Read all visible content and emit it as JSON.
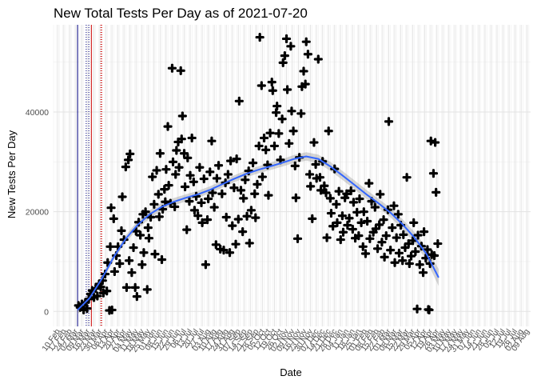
{
  "chart_data": {
    "type": "scatter",
    "title": "New Total Tests Per Day as of 2021-07-20",
    "xlabel": "Date",
    "ylabel": "New Tests Per Day",
    "ylim": [
      -3000,
      57500
    ],
    "xlim": [
      "2020-02-05",
      "2021-08-13"
    ],
    "grid": true,
    "background": "#ffffff",
    "gridline_color": "#ebebeb",
    "point_color": "#000000",
    "smooth_color": "#3366ff",
    "ribbon_color": "#999999",
    "y_ticks": [
      0,
      20000,
      40000
    ],
    "x_tick_dates": [
      "2020-02-10",
      "2020-02-17",
      "2020-02-24",
      "2020-03-02",
      "2020-03-09",
      "2020-03-16",
      "2020-03-23",
      "2020-03-30",
      "2020-04-06",
      "2020-04-13",
      "2020-04-20",
      "2020-04-27",
      "2020-05-04",
      "2020-05-11",
      "2020-05-18",
      "2020-05-25",
      "2020-06-01",
      "2020-06-08",
      "2020-06-15",
      "2020-06-22",
      "2020-06-29",
      "2020-07-06",
      "2020-07-13",
      "2020-07-20",
      "2020-07-27",
      "2020-08-03",
      "2020-08-10",
      "2020-08-17",
      "2020-08-24",
      "2020-08-31",
      "2020-09-07",
      "2020-09-14",
      "2020-09-21",
      "2020-09-28",
      "2020-10-05",
      "2020-10-12",
      "2020-10-19",
      "2020-10-26",
      "2020-11-02",
      "2020-11-09",
      "2020-11-16",
      "2020-11-23",
      "2020-11-30",
      "2020-12-07",
      "2020-12-14",
      "2020-12-21",
      "2020-12-28",
      "2021-01-04",
      "2021-01-11",
      "2021-01-18",
      "2021-01-25",
      "2021-02-01",
      "2021-02-08",
      "2021-02-15",
      "2021-02-22",
      "2021-03-01",
      "2021-03-08",
      "2021-03-15",
      "2021-03-22",
      "2021-03-29",
      "2021-04-05",
      "2021-04-12",
      "2021-04-19",
      "2021-04-26",
      "2021-05-03",
      "2021-05-10",
      "2021-05-17",
      "2021-05-24",
      "2021-05-31",
      "2021-06-07",
      "2021-06-14",
      "2021-06-21",
      "2021-06-28",
      "2021-07-05",
      "2021-07-12",
      "2021-07-19",
      "2021-07-26",
      "2021-08-02",
      "2021-08-09"
    ],
    "x_tick_labels": [
      "10 Feb",
      "17 Feb",
      "24 Feb",
      "02 Mar",
      "09 Mar",
      "16 Mar",
      "23 Mar",
      "30 Mar",
      "06 Apr",
      "13 Apr",
      "20 Apr",
      "27 Apr",
      "04 May",
      "11 May",
      "18 May",
      "25 May",
      "01 Jun",
      "08 Jun",
      "15 Jun",
      "22 Jun",
      "29 Jun",
      "06 Jul",
      "13 Jul",
      "20 Jul",
      "27 Jul",
      "03 Aug",
      "10 Aug",
      "17 Aug",
      "24 Aug",
      "31 Aug",
      "07 Sep",
      "14 Sep",
      "21 Sep",
      "28 Sep",
      "05 Oct",
      "12 Oct",
      "19 Oct",
      "26 Oct",
      "02 Nov",
      "09 Nov",
      "16 Nov",
      "23 Nov",
      "30 Nov",
      "07 Dec",
      "14 Dec",
      "21 Dec",
      "28 Dec",
      "04 Jan",
      "11 Jan",
      "18 Jan",
      "25 Jan",
      "01 Feb",
      "08 Feb",
      "15 Feb",
      "22 Feb",
      "01 Mar",
      "08 Mar",
      "15 Mar",
      "22 Mar",
      "29 Mar",
      "05 Apr",
      "12 Apr",
      "19 Apr",
      "26 Apr",
      "03 May",
      "10 May",
      "17 May",
      "24 May",
      "31 May",
      "07 Jun",
      "14 Jun",
      "21 Jun",
      "28 Jun",
      "05 Jul",
      "12 Jul",
      "19 Jul",
      "26 Jul",
      "02 Aug",
      "09 Aug"
    ],
    "vlines": [
      {
        "date": "2020-03-04",
        "color": "#000080",
        "style": "solid"
      },
      {
        "date": "2020-03-14",
        "color": "#000080",
        "style": "dotted"
      },
      {
        "date": "2020-03-17",
        "color": "#000080",
        "style": "dotted"
      },
      {
        "date": "2020-03-20",
        "color": "#cc0000",
        "style": "solid"
      },
      {
        "date": "2020-03-31",
        "color": "#cc0000",
        "style": "dotted"
      },
      {
        "date": "2020-04-01",
        "color": "#cc0000",
        "style": "dotted"
      }
    ],
    "points": [
      [
        "2020-03-05",
        1200
      ],
      [
        "2020-03-07",
        800
      ],
      [
        "2020-03-09",
        1500
      ],
      [
        "2020-03-11",
        300
      ],
      [
        "2020-03-13",
        1800
      ],
      [
        "2020-03-15",
        600
      ],
      [
        "2020-03-17",
        2500
      ],
      [
        "2020-03-19",
        3500
      ],
      [
        "2020-03-21",
        4200
      ],
      [
        "2020-03-23",
        2800
      ],
      [
        "2020-03-25",
        4600
      ],
      [
        "2020-03-27",
        3100
      ],
      [
        "2020-03-29",
        5500
      ],
      [
        "2020-03-31",
        4900
      ],
      [
        "2020-04-02",
        6200
      ],
      [
        "2020-04-03",
        3700
      ],
      [
        "2020-04-05",
        7500
      ],
      [
        "2020-04-07",
        4100
      ],
      [
        "2020-04-08",
        9800
      ],
      [
        "2020-04-10",
        200
      ],
      [
        "2020-04-11",
        13000
      ],
      [
        "2020-04-12",
        20800
      ],
      [
        "2020-04-13",
        300
      ],
      [
        "2020-04-15",
        18600
      ],
      [
        "2020-04-16",
        8000
      ],
      [
        "2020-04-18",
        11200
      ],
      [
        "2020-04-20",
        13000
      ],
      [
        "2020-04-22",
        9600
      ],
      [
        "2020-04-24",
        16200
      ],
      [
        "2020-04-25",
        23000
      ],
      [
        "2020-04-27",
        14400
      ],
      [
        "2020-04-29",
        29000
      ],
      [
        "2020-04-30",
        4800
      ],
      [
        "2020-05-02",
        30400
      ],
      [
        "2020-05-03",
        10200
      ],
      [
        "2020-05-04",
        31600
      ],
      [
        "2020-05-06",
        7800
      ],
      [
        "2020-05-08",
        12800
      ],
      [
        "2020-05-10",
        4800
      ],
      [
        "2020-05-11",
        16100
      ],
      [
        "2020-05-12",
        3000
      ],
      [
        "2020-05-14",
        17900
      ],
      [
        "2020-05-16",
        15300
      ],
      [
        "2020-05-18",
        9400
      ],
      [
        "2020-05-19",
        19500
      ],
      [
        "2020-05-20",
        11800
      ],
      [
        "2020-05-22",
        20000
      ],
      [
        "2020-05-24",
        4400
      ],
      [
        "2020-05-25",
        16800
      ],
      [
        "2020-05-26",
        14700
      ],
      [
        "2020-05-28",
        18900
      ],
      [
        "2020-05-30",
        27000
      ],
      [
        "2020-06-01",
        21500
      ],
      [
        "2020-06-02",
        11500
      ],
      [
        "2020-06-04",
        28300
      ],
      [
        "2020-06-06",
        23500
      ],
      [
        "2020-06-07",
        19000
      ],
      [
        "2020-06-08",
        31700
      ],
      [
        "2020-06-10",
        10400
      ],
      [
        "2020-06-11",
        20500
      ],
      [
        "2020-06-13",
        24500
      ],
      [
        "2020-06-14",
        22000
      ],
      [
        "2020-06-15",
        28500
      ],
      [
        "2020-06-17",
        37100
      ],
      [
        "2020-06-18",
        25300
      ],
      [
        "2020-06-20",
        21700
      ],
      [
        "2020-06-22",
        48800
      ],
      [
        "2020-06-23",
        30000
      ],
      [
        "2020-06-25",
        21000
      ],
      [
        "2020-06-26",
        27500
      ],
      [
        "2020-06-27",
        32300
      ],
      [
        "2020-06-29",
        34000
      ],
      [
        "2020-06-30",
        28900
      ],
      [
        "2020-07-02",
        48300
      ],
      [
        "2020-07-03",
        34600
      ],
      [
        "2020-07-04",
        39200
      ],
      [
        "2020-07-06",
        31700
      ],
      [
        "2020-07-07",
        25000
      ],
      [
        "2020-07-09",
        16400
      ],
      [
        "2020-07-10",
        30800
      ],
      [
        "2020-07-12",
        22100
      ],
      [
        "2020-07-13",
        27300
      ],
      [
        "2020-07-15",
        34800
      ],
      [
        "2020-07-17",
        26000
      ],
      [
        "2020-07-18",
        20300
      ],
      [
        "2020-07-20",
        23100
      ],
      [
        "2020-07-22",
        19200
      ],
      [
        "2020-07-24",
        28900
      ],
      [
        "2020-07-26",
        21800
      ],
      [
        "2020-07-27",
        17800
      ],
      [
        "2020-07-29",
        26600
      ],
      [
        "2020-07-31",
        9400
      ],
      [
        "2020-08-02",
        18400
      ],
      [
        "2020-08-03",
        22600
      ],
      [
        "2020-08-05",
        28000
      ],
      [
        "2020-08-07",
        34200
      ],
      [
        "2020-08-08",
        23800
      ],
      [
        "2020-08-10",
        20900
      ],
      [
        "2020-08-12",
        13400
      ],
      [
        "2020-08-13",
        26700
      ],
      [
        "2020-08-15",
        29300
      ],
      [
        "2020-08-17",
        12500
      ],
      [
        "2020-08-19",
        23600
      ],
      [
        "2020-08-21",
        12300
      ],
      [
        "2020-08-23",
        25800
      ],
      [
        "2020-08-24",
        18900
      ],
      [
        "2020-08-26",
        27500
      ],
      [
        "2020-08-28",
        11800
      ],
      [
        "2020-08-29",
        30200
      ],
      [
        "2020-08-31",
        17200
      ],
      [
        "2020-09-02",
        24800
      ],
      [
        "2020-09-04",
        13500
      ],
      [
        "2020-09-05",
        30600
      ],
      [
        "2020-09-07",
        18500
      ],
      [
        "2020-09-08",
        42200
      ],
      [
        "2020-09-10",
        24300
      ],
      [
        "2020-09-12",
        16000
      ],
      [
        "2020-09-13",
        22700
      ],
      [
        "2020-09-15",
        26400
      ],
      [
        "2020-09-17",
        19100
      ],
      [
        "2020-09-19",
        28200
      ],
      [
        "2020-09-20",
        13700
      ],
      [
        "2020-09-22",
        20300
      ],
      [
        "2020-09-24",
        29800
      ],
      [
        "2020-09-26",
        23600
      ],
      [
        "2020-09-27",
        18800
      ],
      [
        "2020-09-29",
        25500
      ],
      [
        "2020-10-01",
        33200
      ],
      [
        "2020-10-02",
        55000
      ],
      [
        "2020-10-04",
        45300
      ],
      [
        "2020-10-05",
        27000
      ],
      [
        "2020-10-07",
        34800
      ],
      [
        "2020-10-09",
        32400
      ],
      [
        "2020-10-11",
        29400
      ],
      [
        "2020-10-12",
        23300
      ],
      [
        "2020-10-14",
        35800
      ],
      [
        "2020-10-16",
        46000
      ],
      [
        "2020-10-17",
        44300
      ],
      [
        "2020-10-19",
        33200
      ],
      [
        "2020-10-21",
        39900
      ],
      [
        "2020-10-22",
        41200
      ],
      [
        "2020-10-24",
        35700
      ],
      [
        "2020-10-26",
        30400
      ],
      [
        "2020-10-28",
        38600
      ],
      [
        "2020-10-29",
        49900
      ],
      [
        "2020-10-31",
        51300
      ],
      [
        "2020-11-02",
        54700
      ],
      [
        "2020-11-03",
        44500
      ],
      [
        "2020-11-05",
        33700
      ],
      [
        "2020-11-07",
        53200
      ],
      [
        "2020-11-08",
        40200
      ],
      [
        "2020-11-10",
        36200
      ],
      [
        "2020-11-12",
        29200
      ],
      [
        "2020-11-13",
        22800
      ],
      [
        "2020-11-15",
        14600
      ],
      [
        "2020-11-17",
        30900
      ],
      [
        "2020-11-19",
        39700
      ],
      [
        "2020-11-20",
        45100
      ],
      [
        "2020-11-22",
        48200
      ],
      [
        "2020-11-24",
        45600
      ],
      [
        "2020-11-25",
        54100
      ],
      [
        "2020-11-27",
        51600
      ],
      [
        "2020-11-29",
        27500
      ],
      [
        "2020-11-30",
        25100
      ],
      [
        "2020-12-02",
        18600
      ],
      [
        "2020-12-04",
        33900
      ],
      [
        "2020-12-06",
        29500
      ],
      [
        "2020-12-07",
        26700
      ],
      [
        "2020-12-09",
        50600
      ],
      [
        "2020-12-11",
        26900
      ],
      [
        "2020-12-12",
        24300
      ],
      [
        "2020-12-14",
        30100
      ],
      [
        "2020-12-16",
        25200
      ],
      [
        "2020-12-18",
        23800
      ],
      [
        "2020-12-19",
        14800
      ],
      [
        "2020-12-21",
        36200
      ],
      [
        "2020-12-23",
        22700
      ],
      [
        "2020-12-24",
        19700
      ],
      [
        "2020-12-26",
        17100
      ],
      [
        "2020-12-28",
        28600
      ],
      [
        "2020-12-30",
        21500
      ],
      [
        "2020-12-31",
        17800
      ],
      [
        "2021-01-02",
        24100
      ],
      [
        "2021-01-04",
        14400
      ],
      [
        "2021-01-06",
        19200
      ],
      [
        "2021-01-07",
        15900
      ],
      [
        "2021-01-09",
        22800
      ],
      [
        "2021-01-11",
        23600
      ],
      [
        "2021-01-12",
        17300
      ],
      [
        "2021-01-14",
        18700
      ],
      [
        "2021-01-16",
        24200
      ],
      [
        "2021-01-18",
        16500
      ],
      [
        "2021-01-19",
        21900
      ],
      [
        "2021-01-21",
        14700
      ],
      [
        "2021-01-23",
        19900
      ],
      [
        "2021-01-25",
        15200
      ],
      [
        "2021-01-26",
        22600
      ],
      [
        "2021-01-28",
        17800
      ],
      [
        "2021-01-30",
        13000
      ],
      [
        "2021-01-31",
        20000
      ],
      [
        "2021-02-02",
        11600
      ],
      [
        "2021-02-04",
        18100
      ],
      [
        "2021-02-06",
        25700
      ],
      [
        "2021-02-07",
        14600
      ],
      [
        "2021-02-09",
        22100
      ],
      [
        "2021-02-11",
        15900
      ],
      [
        "2021-02-13",
        20900
      ],
      [
        "2021-02-14",
        16600
      ],
      [
        "2021-02-16",
        12600
      ],
      [
        "2021-02-18",
        17400
      ],
      [
        "2021-02-19",
        23500
      ],
      [
        "2021-02-21",
        13900
      ],
      [
        "2021-02-23",
        18400
      ],
      [
        "2021-02-24",
        10900
      ],
      [
        "2021-02-26",
        15200
      ],
      [
        "2021-02-28",
        20400
      ],
      [
        "2021-03-01",
        38100
      ],
      [
        "2021-03-03",
        12300
      ],
      [
        "2021-03-05",
        16800
      ],
      [
        "2021-03-07",
        21200
      ],
      [
        "2021-03-08",
        9800
      ],
      [
        "2021-03-10",
        14800
      ],
      [
        "2021-03-12",
        19500
      ],
      [
        "2021-03-13",
        11700
      ],
      [
        "2021-03-15",
        17300
      ],
      [
        "2021-03-17",
        10200
      ],
      [
        "2021-03-18",
        15400
      ],
      [
        "2021-03-20",
        12800
      ],
      [
        "2021-03-22",
        26900
      ],
      [
        "2021-03-24",
        13600
      ],
      [
        "2021-03-25",
        9600
      ],
      [
        "2021-03-27",
        11100
      ],
      [
        "2021-03-29",
        14200
      ],
      [
        "2021-03-30",
        17800
      ],
      [
        "2021-04-01",
        12000
      ],
      [
        "2021-04-03",
        500
      ],
      [
        "2021-04-04",
        15300
      ],
      [
        "2021-04-06",
        9400
      ],
      [
        "2021-04-08",
        13100
      ],
      [
        "2021-04-10",
        7800
      ],
      [
        "2021-04-11",
        16000
      ],
      [
        "2021-04-13",
        10700
      ],
      [
        "2021-04-15",
        12400
      ],
      [
        "2021-04-16",
        400
      ],
      [
        "2021-04-17",
        300
      ],
      [
        "2021-04-18",
        9600
      ],
      [
        "2021-04-19",
        34200
      ],
      [
        "2021-04-20",
        11400
      ],
      [
        "2021-04-22",
        27700
      ],
      [
        "2021-04-23",
        11200
      ],
      [
        "2021-04-24",
        33900
      ],
      [
        "2021-04-25",
        23900
      ],
      [
        "2021-04-27",
        13600
      ]
    ],
    "smooth": [
      [
        "2020-03-04",
        300
      ],
      [
        "2020-03-18",
        2700
      ],
      [
        "2020-04-01",
        6500
      ],
      [
        "2020-04-15",
        10900
      ],
      [
        "2020-04-29",
        14600
      ],
      [
        "2020-05-13",
        17400
      ],
      [
        "2020-05-27",
        19500
      ],
      [
        "2020-06-10",
        21000
      ],
      [
        "2020-06-24",
        22000
      ],
      [
        "2020-07-08",
        22800
      ],
      [
        "2020-07-22",
        23500
      ],
      [
        "2020-08-05",
        24400
      ],
      [
        "2020-08-19",
        25500
      ],
      [
        "2020-09-02",
        26600
      ],
      [
        "2020-09-16",
        27600
      ],
      [
        "2020-09-30",
        28400
      ],
      [
        "2020-10-14",
        29100
      ],
      [
        "2020-10-28",
        29800
      ],
      [
        "2020-11-11",
        30600
      ],
      [
        "2020-11-25",
        31100
      ],
      [
        "2020-12-09",
        30600
      ],
      [
        "2020-12-23",
        29100
      ],
      [
        "2021-01-06",
        27300
      ],
      [
        "2021-01-20",
        25400
      ],
      [
        "2021-02-03",
        23500
      ],
      [
        "2021-02-17",
        21700
      ],
      [
        "2021-03-03",
        19800
      ],
      [
        "2021-03-17",
        17500
      ],
      [
        "2021-03-31",
        14800
      ],
      [
        "2021-04-14",
        11500
      ],
      [
        "2021-04-28",
        6800
      ]
    ],
    "smooth_se": [
      900,
      800,
      700,
      650,
      700,
      800,
      850,
      800,
      750,
      700,
      700,
      700,
      700,
      700,
      700,
      700,
      750,
      750,
      800,
      850,
      850,
      900,
      900,
      900,
      900,
      900,
      950,
      1000,
      1100,
      1300,
      1700
    ]
  }
}
